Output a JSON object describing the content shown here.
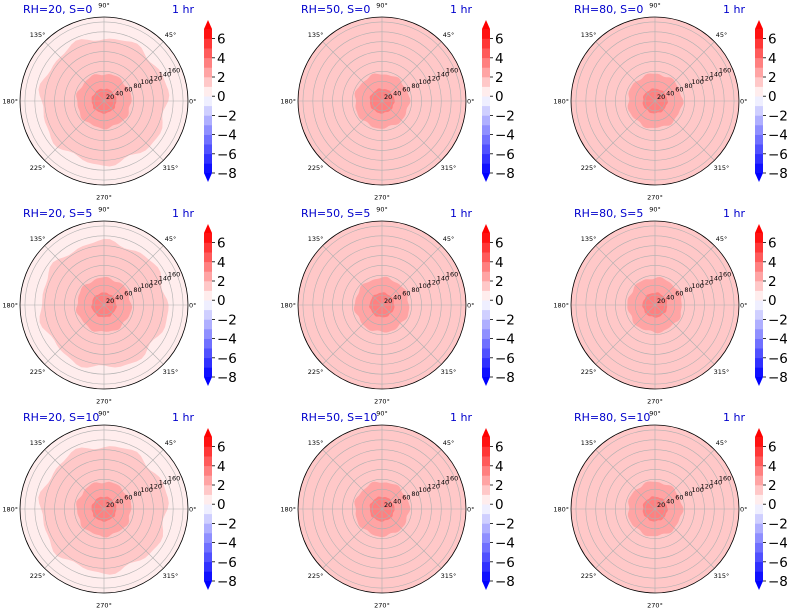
{
  "figure": {
    "colormap": {
      "low_color": "#0000ff",
      "mid_color": "#ffffff",
      "high_color": "#ff0000"
    }
  },
  "chart_data": [
    {
      "type": "heatmap",
      "projection": "polar",
      "title_left": "RH=20, S=0",
      "title_right": "1 hr",
      "theta_tick_labels": [
        "0°",
        "45°",
        "90°",
        "135°",
        "180°",
        "225°",
        "270°",
        "315°"
      ],
      "r_tick_labels": [
        "20",
        "40",
        "60",
        "80",
        "100",
        "120",
        "140",
        "160"
      ],
      "rlim": [
        0,
        170
      ],
      "contour_levels": [
        -8,
        -7,
        -6,
        -5,
        -4,
        -3,
        -2,
        -1,
        0,
        1,
        2,
        3,
        4,
        5,
        6,
        7
      ],
      "field": {
        "center_value": 3.3,
        "ring_values": [
          [
            0,
            25,
            3.0
          ],
          [
            25,
            55,
            2.6
          ],
          [
            55,
            128,
            1.6
          ],
          [
            128,
            170,
            0.5
          ]
        ]
      },
      "colorbar": {
        "ticks": [
          6,
          4,
          2,
          0,
          -2,
          -4,
          -6,
          -8
        ],
        "tick_labels": [
          "6",
          "4",
          "2",
          "0",
          "−2",
          "−4",
          "−6",
          "−8"
        ],
        "range": [
          -8,
          7
        ],
        "extend": "both"
      }
    },
    {
      "type": "heatmap",
      "projection": "polar",
      "title_left": "RH=50, S=0",
      "title_right": "1 hr",
      "theta_tick_labels": [
        "0°",
        "45°",
        "90°",
        "135°",
        "180°",
        "225°",
        "270°",
        "315°"
      ],
      "r_tick_labels": [
        "20",
        "40",
        "60",
        "80",
        "100",
        "120",
        "140",
        "160"
      ],
      "rlim": [
        0,
        170
      ],
      "contour_levels": [
        -8,
        -7,
        -6,
        -5,
        -4,
        -3,
        -2,
        -1,
        0,
        1,
        2,
        3,
        4,
        5,
        6,
        7
      ],
      "field": {
        "center_value": 3.3,
        "ring_values": [
          [
            0,
            25,
            3.0
          ],
          [
            25,
            55,
            2.6
          ],
          [
            55,
            128,
            1.6
          ],
          [
            128,
            170,
            1.0
          ]
        ]
      },
      "colorbar": {
        "ticks": [
          6,
          4,
          2,
          0,
          -2,
          -4,
          -6,
          -8
        ],
        "tick_labels": [
          "6",
          "4",
          "2",
          "0",
          "−2",
          "−4",
          "−6",
          "−8"
        ],
        "range": [
          -8,
          7
        ],
        "extend": "both"
      }
    },
    {
      "type": "heatmap",
      "projection": "polar",
      "title_left": "RH=80, S=0",
      "title_right": "1 hr",
      "theta_tick_labels": [
        "0°",
        "45°",
        "90°",
        "135°",
        "180°",
        "225°",
        "270°",
        "315°"
      ],
      "r_tick_labels": [
        "20",
        "40",
        "60",
        "80",
        "100",
        "120",
        "140",
        "160"
      ],
      "rlim": [
        0,
        170
      ],
      "contour_levels": [
        -8,
        -7,
        -6,
        -5,
        -4,
        -3,
        -2,
        -1,
        0,
        1,
        2,
        3,
        4,
        5,
        6,
        7
      ],
      "field": {
        "center_value": 3.3,
        "ring_values": [
          [
            0,
            25,
            3.0
          ],
          [
            25,
            55,
            2.6
          ],
          [
            55,
            128,
            1.6
          ],
          [
            128,
            170,
            1.0
          ]
        ]
      },
      "colorbar": {
        "ticks": [
          6,
          4,
          2,
          0,
          -2,
          -4,
          -6,
          -8
        ],
        "tick_labels": [
          "6",
          "4",
          "2",
          "0",
          "−2",
          "−4",
          "−6",
          "−8"
        ],
        "range": [
          -8,
          7
        ],
        "extend": "both"
      }
    },
    {
      "type": "heatmap",
      "projection": "polar",
      "title_left": "RH=20, S=5",
      "title_right": "1 hr",
      "theta_tick_labels": [
        "0°",
        "45°",
        "90°",
        "135°",
        "180°",
        "225°",
        "270°",
        "315°"
      ],
      "r_tick_labels": [
        "20",
        "40",
        "60",
        "80",
        "100",
        "120",
        "140",
        "160"
      ],
      "rlim": [
        0,
        170
      ],
      "contour_levels": [
        -8,
        -7,
        -6,
        -5,
        -4,
        -3,
        -2,
        -1,
        0,
        1,
        2,
        3,
        4,
        5,
        6,
        7
      ],
      "field": {
        "center_value": 3.3,
        "ring_values": [
          [
            0,
            25,
            3.0
          ],
          [
            25,
            55,
            2.6
          ],
          [
            55,
            128,
            1.6
          ],
          [
            128,
            170,
            0.5
          ]
        ]
      },
      "colorbar": {
        "ticks": [
          6,
          4,
          2,
          0,
          -2,
          -4,
          -6,
          -8
        ],
        "tick_labels": [
          "6",
          "4",
          "2",
          "0",
          "−2",
          "−4",
          "−6",
          "−8"
        ],
        "range": [
          -8,
          7
        ],
        "extend": "both"
      }
    },
    {
      "type": "heatmap",
      "projection": "polar",
      "title_left": "RH=50, S=5",
      "title_right": "1 hr",
      "theta_tick_labels": [
        "0°",
        "45°",
        "90°",
        "135°",
        "180°",
        "225°",
        "270°",
        "315°"
      ],
      "r_tick_labels": [
        "20",
        "40",
        "60",
        "80",
        "100",
        "120",
        "140",
        "160"
      ],
      "rlim": [
        0,
        170
      ],
      "contour_levels": [
        -8,
        -7,
        -6,
        -5,
        -4,
        -3,
        -2,
        -1,
        0,
        1,
        2,
        3,
        4,
        5,
        6,
        7
      ],
      "field": {
        "center_value": 3.3,
        "ring_values": [
          [
            0,
            25,
            3.0
          ],
          [
            25,
            55,
            2.6
          ],
          [
            55,
            128,
            1.6
          ],
          [
            128,
            170,
            1.0
          ]
        ]
      },
      "colorbar": {
        "ticks": [
          6,
          4,
          2,
          0,
          -2,
          -4,
          -6,
          -8
        ],
        "tick_labels": [
          "6",
          "4",
          "2",
          "0",
          "−2",
          "−4",
          "−6",
          "−8"
        ],
        "range": [
          -8,
          7
        ],
        "extend": "both"
      }
    },
    {
      "type": "heatmap",
      "projection": "polar",
      "title_left": "RH=80, S=5",
      "title_right": "1 hr",
      "theta_tick_labels": [
        "0°",
        "45°",
        "90°",
        "135°",
        "180°",
        "225°",
        "270°",
        "315°"
      ],
      "r_tick_labels": [
        "20",
        "40",
        "60",
        "80",
        "100",
        "120",
        "140",
        "160"
      ],
      "rlim": [
        0,
        170
      ],
      "contour_levels": [
        -8,
        -7,
        -6,
        -5,
        -4,
        -3,
        -2,
        -1,
        0,
        1,
        2,
        3,
        4,
        5,
        6,
        7
      ],
      "field": {
        "center_value": 3.3,
        "ring_values": [
          [
            0,
            25,
            3.0
          ],
          [
            25,
            55,
            2.6
          ],
          [
            55,
            128,
            1.6
          ],
          [
            128,
            170,
            1.0
          ]
        ]
      },
      "colorbar": {
        "ticks": [
          6,
          4,
          2,
          0,
          -2,
          -4,
          -6,
          -8
        ],
        "tick_labels": [
          "6",
          "4",
          "2",
          "0",
          "−2",
          "−4",
          "−6",
          "−8"
        ],
        "range": [
          -8,
          7
        ],
        "extend": "both"
      }
    },
    {
      "type": "heatmap",
      "projection": "polar",
      "title_left": "RH=20, S=10",
      "title_right": "1 hr",
      "theta_tick_labels": [
        "0°",
        "45°",
        "90°",
        "135°",
        "180°",
        "225°",
        "270°",
        "315°"
      ],
      "r_tick_labels": [
        "20",
        "40",
        "60",
        "80",
        "100",
        "120",
        "140",
        "160"
      ],
      "rlim": [
        0,
        170
      ],
      "contour_levels": [
        -8,
        -7,
        -6,
        -5,
        -4,
        -3,
        -2,
        -1,
        0,
        1,
        2,
        3,
        4,
        5,
        6,
        7
      ],
      "field": {
        "center_value": 3.3,
        "ring_values": [
          [
            0,
            25,
            3.0
          ],
          [
            25,
            55,
            2.6
          ],
          [
            55,
            128,
            1.6
          ],
          [
            128,
            170,
            0.5
          ]
        ]
      },
      "colorbar": {
        "ticks": [
          6,
          4,
          2,
          0,
          -2,
          -4,
          -6,
          -8
        ],
        "tick_labels": [
          "6",
          "4",
          "2",
          "0",
          "−2",
          "−4",
          "−6",
          "−8"
        ],
        "range": [
          -8,
          7
        ],
        "extend": "both"
      }
    },
    {
      "type": "heatmap",
      "projection": "polar",
      "title_left": "RH=50, S=10",
      "title_right": "1 hr",
      "theta_tick_labels": [
        "0°",
        "45°",
        "90°",
        "135°",
        "180°",
        "225°",
        "270°",
        "315°"
      ],
      "r_tick_labels": [
        "20",
        "40",
        "60",
        "80",
        "100",
        "120",
        "140",
        "160"
      ],
      "rlim": [
        0,
        170
      ],
      "contour_levels": [
        -8,
        -7,
        -6,
        -5,
        -4,
        -3,
        -2,
        -1,
        0,
        1,
        2,
        3,
        4,
        5,
        6,
        7
      ],
      "field": {
        "center_value": 3.3,
        "ring_values": [
          [
            0,
            25,
            3.0
          ],
          [
            25,
            55,
            2.6
          ],
          [
            55,
            128,
            1.6
          ],
          [
            128,
            170,
            1.0
          ]
        ]
      },
      "colorbar": {
        "ticks": [
          6,
          4,
          2,
          0,
          -2,
          -4,
          -6,
          -8
        ],
        "tick_labels": [
          "6",
          "4",
          "2",
          "0",
          "−2",
          "−4",
          "−6",
          "−8"
        ],
        "range": [
          -8,
          7
        ],
        "extend": "both"
      }
    },
    {
      "type": "heatmap",
      "projection": "polar",
      "title_left": "RH=80, S=10",
      "title_right": "1 hr",
      "theta_tick_labels": [
        "0°",
        "45°",
        "90°",
        "135°",
        "180°",
        "225°",
        "270°",
        "315°"
      ],
      "r_tick_labels": [
        "20",
        "40",
        "60",
        "80",
        "100",
        "120",
        "140",
        "160"
      ],
      "rlim": [
        0,
        170
      ],
      "contour_levels": [
        -8,
        -7,
        -6,
        -5,
        -4,
        -3,
        -2,
        -1,
        0,
        1,
        2,
        3,
        4,
        5,
        6,
        7
      ],
      "field": {
        "center_value": 3.3,
        "ring_values": [
          [
            0,
            25,
            3.0
          ],
          [
            25,
            55,
            2.6
          ],
          [
            55,
            128,
            1.6
          ],
          [
            128,
            170,
            1.0
          ]
        ]
      },
      "colorbar": {
        "ticks": [
          6,
          4,
          2,
          0,
          -2,
          -4,
          -6,
          -8
        ],
        "tick_labels": [
          "6",
          "4",
          "2",
          "0",
          "−2",
          "−4",
          "−6",
          "−8"
        ],
        "range": [
          -8,
          7
        ],
        "extend": "both"
      }
    }
  ]
}
